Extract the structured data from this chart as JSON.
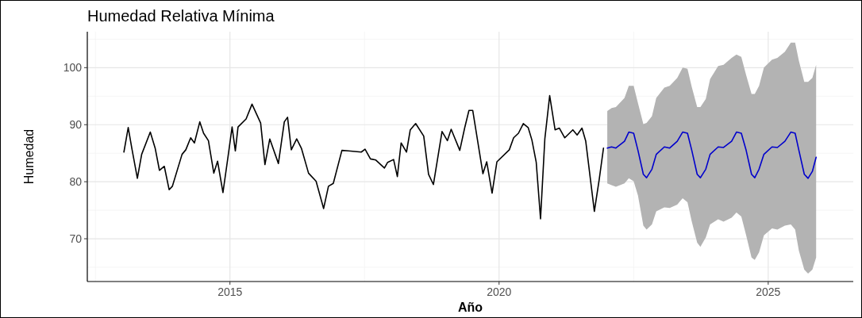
{
  "chart_data": {
    "type": "line",
    "title": "Humedad Relativa Mínima",
    "xlabel": "Año",
    "ylabel": "Humedad",
    "xlim": [
      2012.35,
      2026.58
    ],
    "xticks": [
      2015,
      2020,
      2025
    ],
    "ylim": [
      62.5,
      106.3
    ],
    "yticks": [
      70,
      80,
      90,
      100
    ],
    "grid": true,
    "series": [
      {
        "color": "#000000",
        "x": [
          2013.03,
          2013.11,
          2013.18,
          2013.28,
          2013.36,
          2013.52,
          2013.61,
          2013.69,
          2013.78,
          2013.87,
          2013.93,
          2014.11,
          2014.18,
          2014.27,
          2014.34,
          2014.44,
          2014.51,
          2014.6,
          2014.7,
          2014.77,
          2014.87,
          2014.96,
          2015.04,
          2015.1,
          2015.15,
          2015.3,
          2015.41,
          2015.57,
          2015.65,
          2015.74,
          2015.9,
          2016.01,
          2016.07,
          2016.14,
          2016.24,
          2016.33,
          2016.46,
          2016.6,
          2016.74,
          2016.83,
          2016.92,
          2017.08,
          2017.2,
          2017.44,
          2017.51,
          2017.61,
          2017.71,
          2017.87,
          2017.93,
          2018.04,
          2018.11,
          2018.18,
          2018.28,
          2018.35,
          2018.45,
          2018.6,
          2018.69,
          2018.78,
          2018.94,
          2019.04,
          2019.11,
          2019.27,
          2019.36,
          2019.44,
          2019.51,
          2019.7,
          2019.77,
          2019.87,
          2019.96,
          2020.19,
          2020.27,
          2020.36,
          2020.45,
          2020.54,
          2020.61,
          2020.69,
          2020.77,
          2020.85,
          2020.94,
          2021.04,
          2021.12,
          2021.22,
          2021.37,
          2021.45,
          2021.54,
          2021.61,
          2021.77,
          2021.86,
          2021.94
        ],
        "values": [
          85.2,
          89.5,
          85.7,
          80.6,
          84.8,
          88.7,
          85.9,
          82.0,
          82.7,
          78.6,
          79.2,
          84.8,
          85.6,
          87.7,
          86.8,
          90.5,
          88.5,
          87.2,
          81.5,
          83.6,
          78.1,
          84.1,
          89.6,
          85.4,
          89.6,
          91.0,
          93.6,
          90.3,
          83.0,
          87.5,
          83.2,
          90.5,
          91.3,
          85.6,
          87.5,
          85.8,
          81.5,
          80.1,
          75.3,
          79.2,
          79.7,
          85.5,
          85.4,
          85.2,
          85.7,
          84.0,
          83.8,
          82.4,
          83.4,
          83.9,
          80.9,
          86.8,
          85.2,
          89.1,
          90.2,
          88.0,
          81.3,
          79.5,
          88.8,
          87.2,
          89.2,
          85.5,
          89.4,
          92.5,
          92.5,
          81.4,
          83.5,
          78.0,
          83.5,
          85.6,
          87.7,
          88.5,
          90.2,
          89.5,
          87.3,
          83.4,
          73.5,
          87.5,
          95.1,
          89.1,
          89.4,
          87.7,
          89.1,
          88.2,
          89.4,
          87.1,
          74.8,
          80.4,
          85.9
        ]
      },
      {
        "color": "#0000cc",
        "x": [
          2022.01,
          2022.09,
          2022.17,
          2022.33,
          2022.41,
          2022.5,
          2022.58,
          2022.68,
          2022.74,
          2022.84,
          2022.92,
          2023.07,
          2023.17,
          2023.31,
          2023.41,
          2023.5,
          2023.58,
          2023.68,
          2023.74,
          2023.84,
          2023.92,
          2024.07,
          2024.17,
          2024.32,
          2024.41,
          2024.5,
          2024.59,
          2024.69,
          2024.75,
          2024.83,
          2024.92,
          2025.07,
          2025.17,
          2025.31,
          2025.42,
          2025.5,
          2025.57,
          2025.67,
          2025.74,
          2025.82,
          2025.89
        ],
        "values": [
          85.9,
          86.1,
          85.9,
          87.1,
          88.7,
          88.5,
          85.5,
          81.3,
          80.7,
          82.2,
          84.8,
          86.1,
          85.9,
          87.1,
          88.7,
          88.5,
          85.5,
          81.3,
          80.7,
          82.2,
          84.8,
          86.1,
          86.0,
          87.1,
          88.7,
          88.5,
          85.5,
          81.3,
          80.7,
          82.2,
          84.8,
          86.1,
          86.0,
          87.1,
          88.7,
          88.5,
          85.5,
          81.3,
          80.6,
          81.8,
          84.3
        ],
        "upper": [
          92.4,
          92.9,
          93.1,
          94.7,
          96.8,
          96.8,
          93.8,
          90.1,
          90.3,
          91.5,
          94.7,
          96.5,
          96.8,
          98.2,
          100.0,
          99.8,
          96.6,
          93.1,
          93.1,
          94.5,
          98.0,
          100.3,
          100.5,
          101.7,
          102.3,
          101.9,
          98.7,
          95.4,
          95.4,
          96.8,
          100.0,
          101.4,
          101.7,
          102.8,
          104.4,
          104.4,
          101.2,
          97.5,
          97.5,
          98.2,
          100.5
        ],
        "lower": [
          79.7,
          79.4,
          79.1,
          79.7,
          80.6,
          80.1,
          77.6,
          72.3,
          71.6,
          72.5,
          74.8,
          75.5,
          75.4,
          76.0,
          77.1,
          76.4,
          73.0,
          69.3,
          68.6,
          70.2,
          72.5,
          73.4,
          73.0,
          73.7,
          74.6,
          73.9,
          70.6,
          66.7,
          66.3,
          67.6,
          70.6,
          71.8,
          71.6,
          72.3,
          72.5,
          71.6,
          67.9,
          64.6,
          63.9,
          64.6,
          66.7
        ]
      }
    ]
  }
}
